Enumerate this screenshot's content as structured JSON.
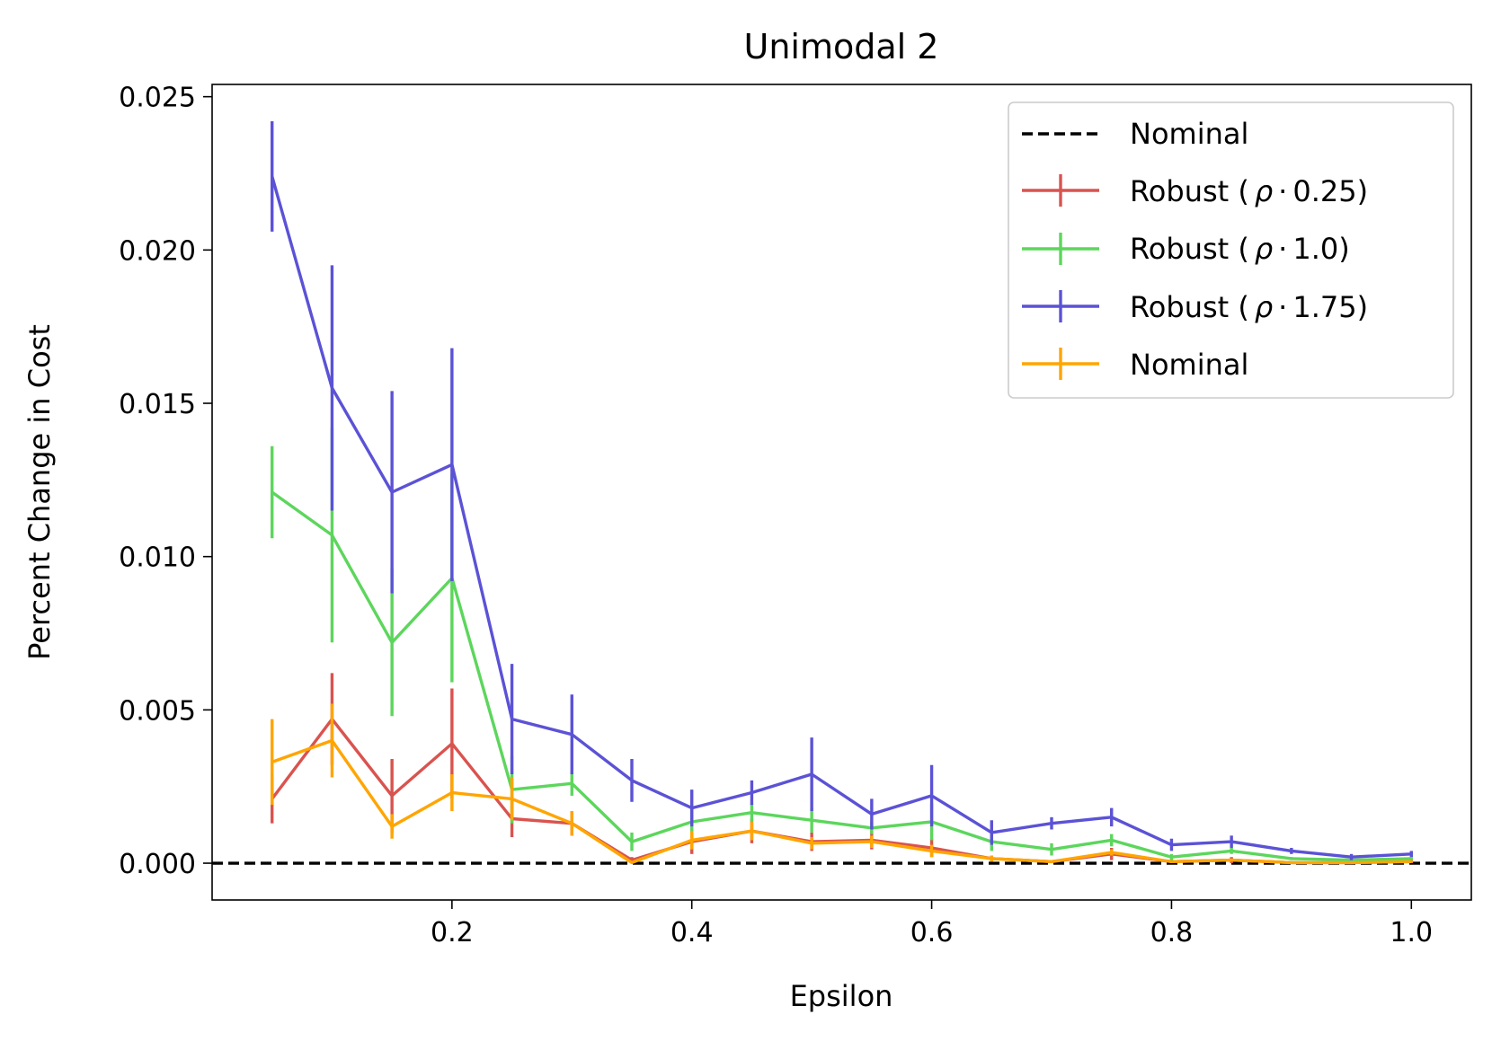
{
  "chart_data": {
    "type": "line",
    "title": "Unimodal 2",
    "xlabel": "Epsilon",
    "ylabel": "Percent Change in Cost",
    "xlim": [
      0.0,
      1.05
    ],
    "ylim": [
      -0.0012,
      0.0254
    ],
    "xticks": [
      0.2,
      0.4,
      0.6,
      0.8,
      1.0
    ],
    "xtick_labels": [
      "0.2",
      "0.4",
      "0.6",
      "0.8",
      "1.0"
    ],
    "yticks": [
      0.0,
      0.005,
      0.01,
      0.015,
      0.02,
      0.025
    ],
    "ytick_labels": [
      "0.000",
      "0.005",
      "0.010",
      "0.015",
      "0.020",
      "0.025"
    ],
    "grid": false,
    "legend_position": "top-right",
    "x": [
      0.05,
      0.1,
      0.15,
      0.2,
      0.25,
      0.3,
      0.35,
      0.4,
      0.45,
      0.5,
      0.55,
      0.6,
      0.65,
      0.7,
      0.75,
      0.8,
      0.85,
      0.9,
      0.95,
      1.0
    ],
    "reference_line": {
      "name": "Nominal",
      "y": 0.0,
      "color": "#000000",
      "style": "dashed"
    },
    "series": [
      {
        "name": "Robust (ρ·0.25)",
        "legend_prefix": "Robust (",
        "legend_rho": "ρ",
        "legend_dot": "·",
        "legend_suffix": "0.25)",
        "color": "#d9534f",
        "values": [
          0.0021,
          0.0047,
          0.0022,
          0.0039,
          0.00145,
          0.0013,
          0.0001,
          0.0007,
          0.00105,
          0.0007,
          0.00075,
          0.0005,
          0.00015,
          5e-05,
          0.0003,
          5e-05,
          0.0001,
          2e-05,
          2e-05,
          5e-05
        ],
        "errors": [
          0.0008,
          0.0015,
          0.0012,
          0.0018,
          0.0006,
          0.0004,
          0.0001,
          0.0004,
          0.0004,
          0.0003,
          0.0003,
          0.0003,
          0.0001,
          5e-05,
          0.0002,
          5e-05,
          0.0001,
          3e-05,
          3e-05,
          5e-05
        ]
      },
      {
        "name": "Robust (ρ·1.0)",
        "legend_prefix": "Robust (",
        "legend_rho": "ρ",
        "legend_dot": "·",
        "legend_suffix": "1.0)",
        "color": "#5cd65c",
        "values": [
          0.0121,
          0.0107,
          0.0072,
          0.0093,
          0.0024,
          0.0026,
          0.0007,
          0.00135,
          0.00165,
          0.0014,
          0.00115,
          0.00135,
          0.0007,
          0.00045,
          0.00075,
          0.0002,
          0.0004,
          0.00015,
          0.0001,
          0.00015
        ],
        "errors": [
          0.0015,
          0.0035,
          0.0024,
          0.0034,
          0.0011,
          0.0004,
          0.0003,
          0.0005,
          0.0003,
          0.0004,
          0.0002,
          0.0006,
          0.0003,
          0.0002,
          0.0002,
          0.0001,
          0.0001,
          5e-05,
          5e-05,
          5e-05
        ]
      },
      {
        "name": "Robust (ρ·1.75)",
        "legend_prefix": "Robust (",
        "legend_rho": "ρ",
        "legend_dot": "·",
        "legend_suffix": "1.75)",
        "color": "#5b52d6",
        "values": [
          0.0224,
          0.0155,
          0.0121,
          0.013,
          0.0047,
          0.0042,
          0.0027,
          0.0018,
          0.0023,
          0.0029,
          0.0016,
          0.0022,
          0.001,
          0.0013,
          0.0015,
          0.0006,
          0.0007,
          0.0004,
          0.0002,
          0.0003
        ],
        "errors": [
          0.0018,
          0.004,
          0.0033,
          0.0038,
          0.0018,
          0.0013,
          0.0007,
          0.0006,
          0.0004,
          0.0012,
          0.0005,
          0.001,
          0.0004,
          0.0002,
          0.0003,
          0.0002,
          0.0002,
          0.0001,
          0.0001,
          0.0001
        ]
      },
      {
        "name": "Nominal",
        "legend_prefix": "Nominal",
        "legend_rho": "",
        "legend_dot": "",
        "legend_suffix": "",
        "color": "#ffa500",
        "values": [
          0.0033,
          0.004,
          0.0012,
          0.0023,
          0.0021,
          0.0013,
          2e-05,
          0.00075,
          0.00105,
          0.00065,
          0.0007,
          0.0004,
          0.00015,
          5e-05,
          0.00035,
          5e-05,
          0.0001,
          2e-05,
          2e-05,
          5e-05
        ],
        "errors": [
          0.0014,
          0.0012,
          0.0004,
          0.0006,
          0.0007,
          0.0004,
          2e-05,
          0.0003,
          0.0003,
          0.0002,
          0.0002,
          0.0002,
          0.0001,
          3e-05,
          0.0001,
          3e-05,
          5e-05,
          2e-05,
          2e-05,
          3e-05
        ]
      }
    ]
  }
}
